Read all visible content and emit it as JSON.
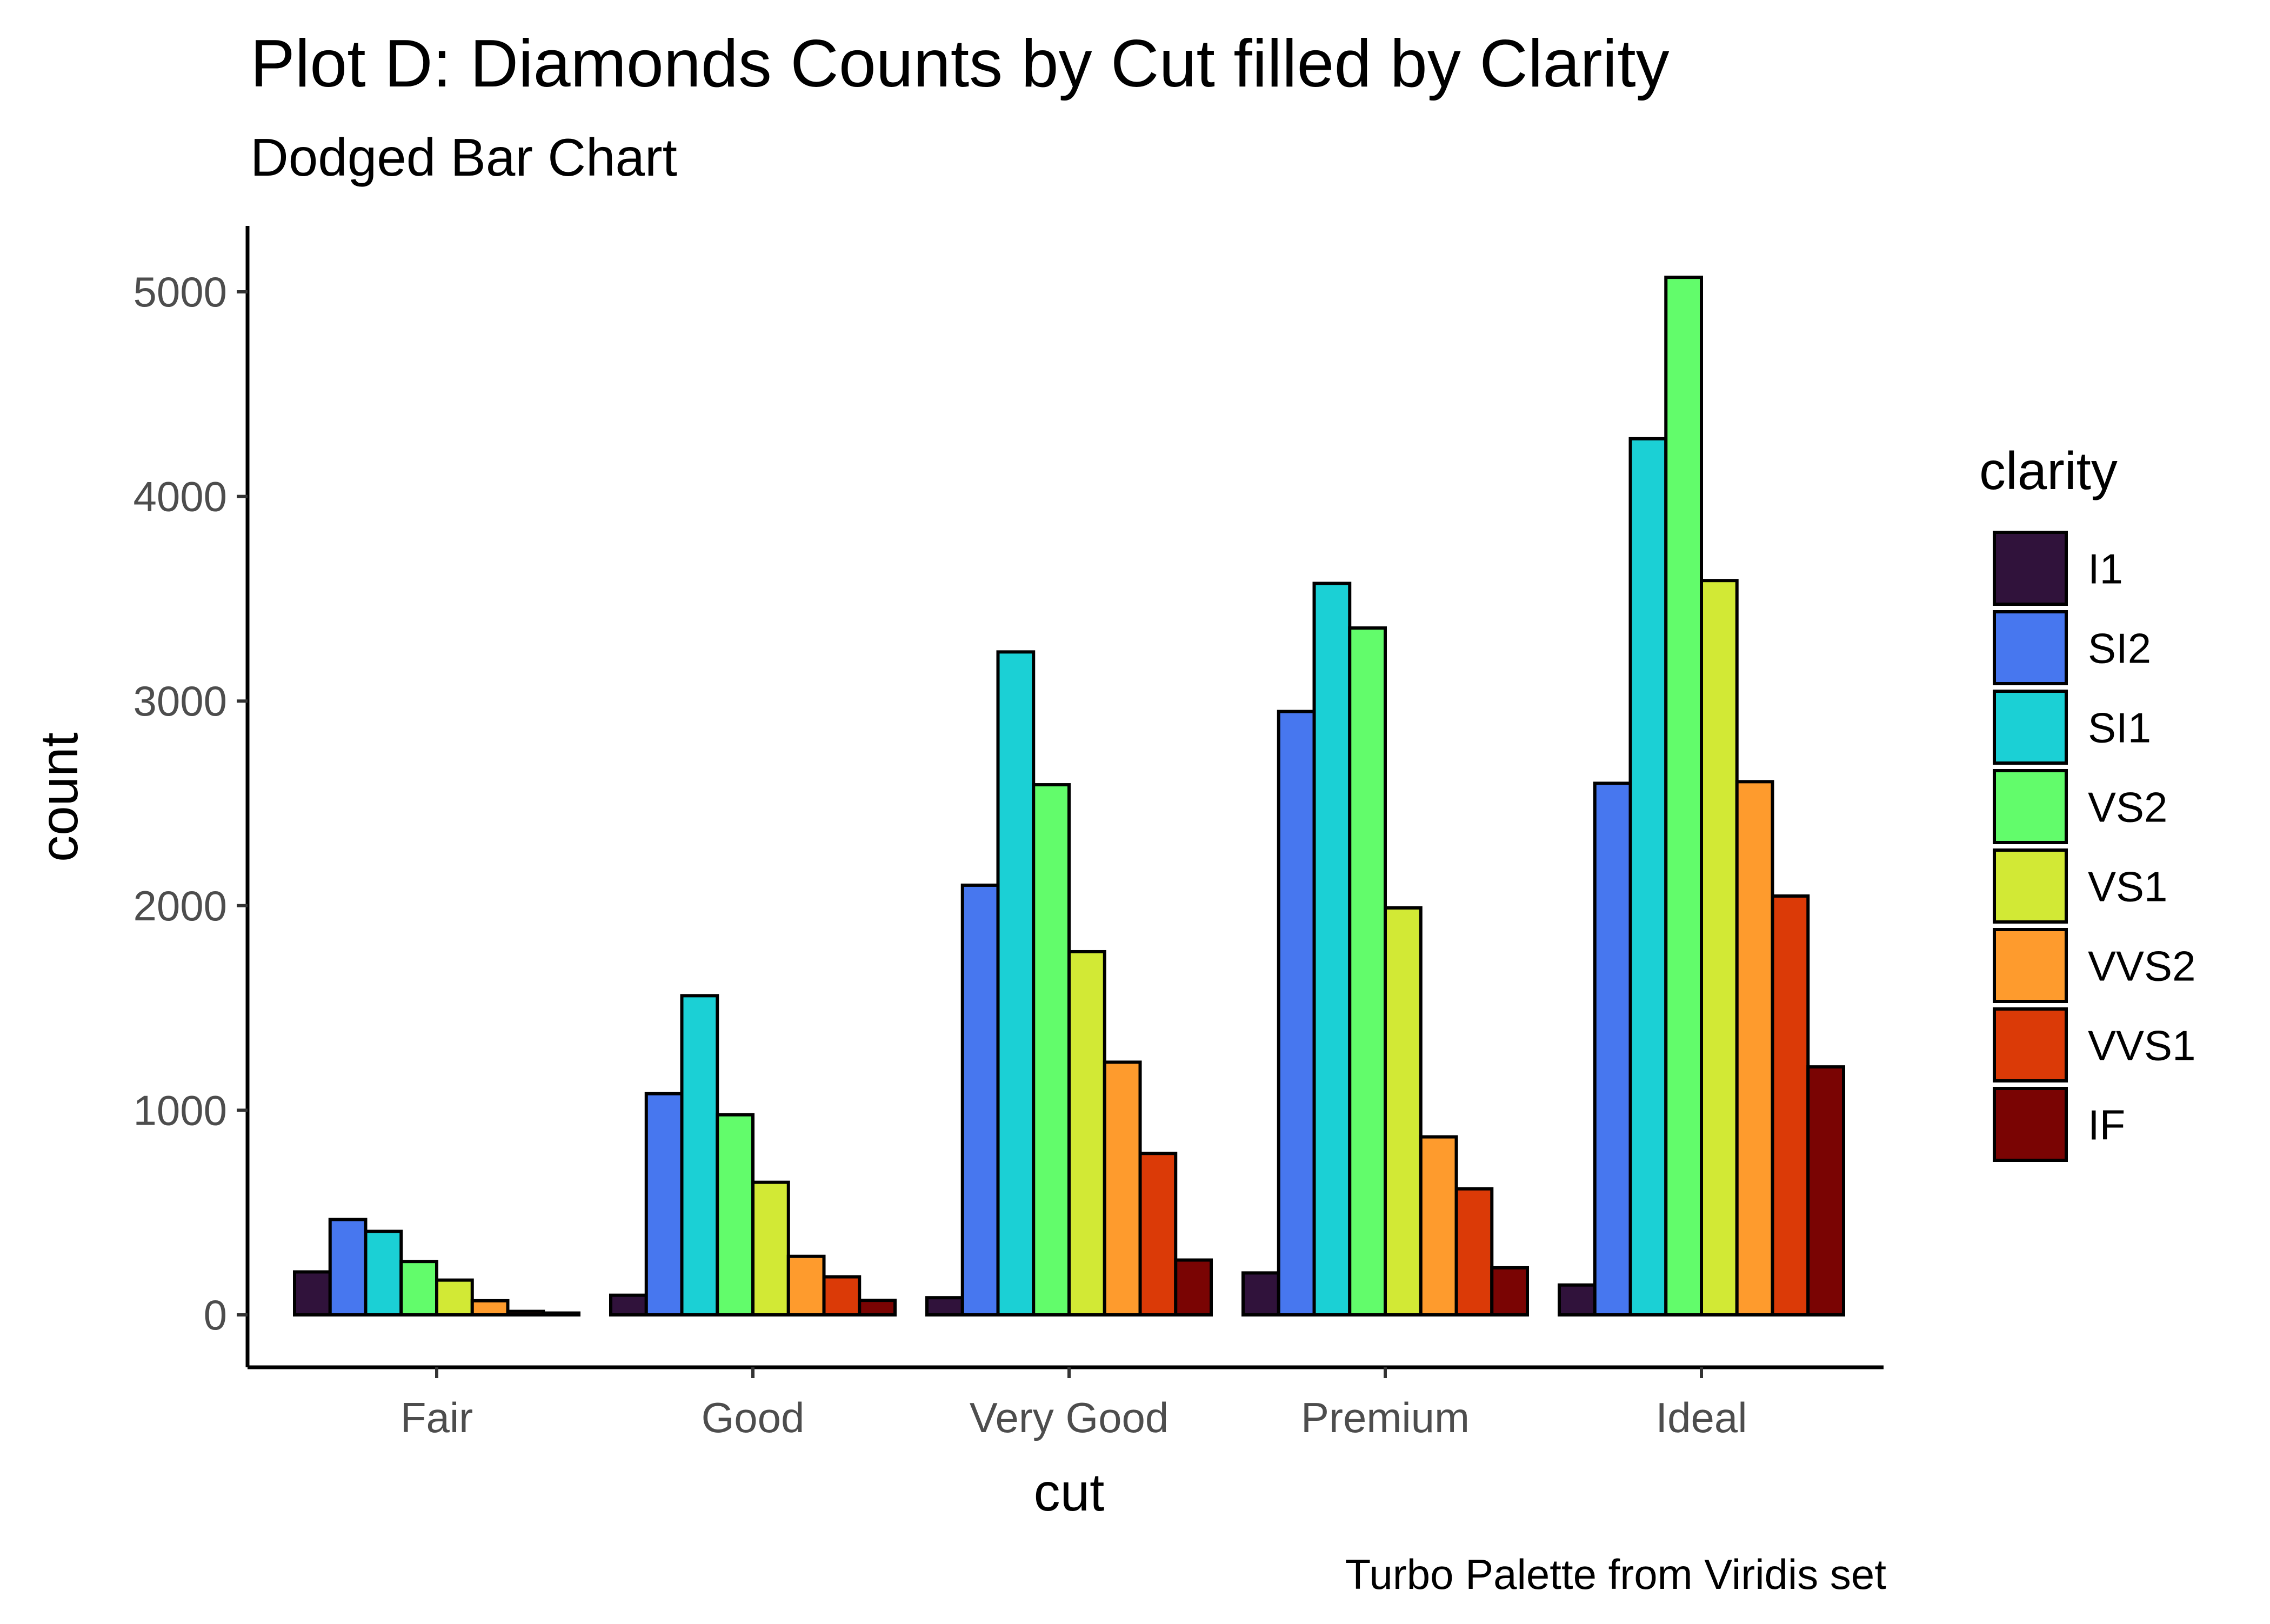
{
  "chart_data": {
    "type": "bar",
    "title": "Plot D: Diamonds Counts by Cut filled by Clarity",
    "subtitle": "Dodged Bar Chart",
    "caption": "Turbo Palette from Viridis set",
    "xlabel": "cut",
    "ylabel": "count",
    "ylim": [
      0,
      5300
    ],
    "yticks": [
      0,
      1000,
      2000,
      3000,
      4000,
      5000
    ],
    "grid": false,
    "legend_position": "right",
    "legend_title": "clarity",
    "categories": [
      "Fair",
      "Good",
      "Very Good",
      "Premium",
      "Ideal"
    ],
    "series": [
      {
        "name": "I1",
        "color": "#30123b",
        "values": [
          210,
          96,
          84,
          205,
          146
        ]
      },
      {
        "name": "SI2",
        "color": "#4777ef",
        "values": [
          466,
          1081,
          2100,
          2949,
          2598
        ]
      },
      {
        "name": "SI1",
        "color": "#1bd0d5",
        "values": [
          408,
          1560,
          3240,
          3575,
          4282
        ]
      },
      {
        "name": "VS2",
        "color": "#62fc6b",
        "values": [
          261,
          978,
          2591,
          3357,
          5071
        ]
      },
      {
        "name": "VS1",
        "color": "#d2e935",
        "values": [
          170,
          648,
          1775,
          1989,
          3589
        ]
      },
      {
        "name": "VVS2",
        "color": "#fe9b2d",
        "values": [
          69,
          286,
          1235,
          870,
          2606
        ]
      },
      {
        "name": "VVS1",
        "color": "#db3a07",
        "values": [
          17,
          186,
          789,
          616,
          2047
        ]
      },
      {
        "name": "IF",
        "color": "#7a0403",
        "values": [
          9,
          71,
          268,
          230,
          1212
        ]
      }
    ]
  }
}
